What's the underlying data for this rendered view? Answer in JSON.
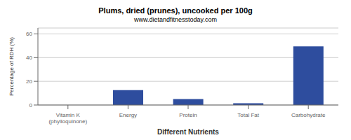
{
  "chart_data": {
    "type": "bar",
    "title": "Plums, dried (prunes), uncooked per 100g",
    "subtitle": "www.dietandfitnesstoday.com",
    "xlabel": "Different Nutrients",
    "ylabel": "Percentage of RDH (%)",
    "categories": [
      "Vitamin K (phylloquinone)",
      "Energy",
      "Protein",
      "Total Fat",
      "Carbohydrate"
    ],
    "values": [
      0.0,
      12.5,
      5.0,
      1.5,
      49.5
    ],
    "color": "#2e4d9e",
    "ylim": [
      0,
      65
    ],
    "yticks": [
      0,
      20,
      40,
      60
    ],
    "grid": true
  }
}
